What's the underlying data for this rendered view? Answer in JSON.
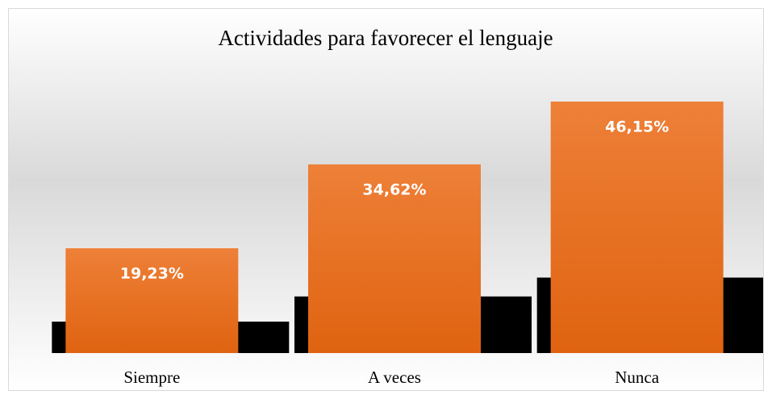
{
  "chart_data": {
    "type": "bar",
    "title": "Actividades para favorecer el lenguaje",
    "categories": [
      "Siempre",
      "A veces",
      "Nunca"
    ],
    "values": [
      19.23,
      34.62,
      46.15
    ],
    "value_labels": [
      "19,23%",
      "34,62%",
      "46,15%"
    ],
    "color": "#ed7d31"
  }
}
